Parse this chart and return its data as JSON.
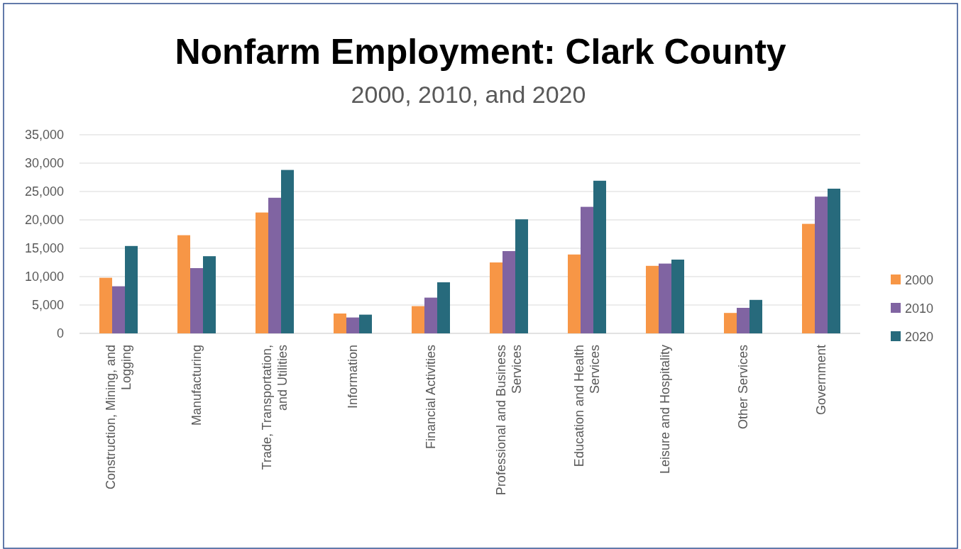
{
  "chart_data": {
    "type": "bar",
    "title": "Nonfarm Employment: Clark County",
    "subtitle": "2000, 2010, and 2020",
    "categories": [
      "Construction, Mining, and Logging",
      "Manufacturing",
      "Trade, Transportation, and Utilities",
      "Information",
      "Financial Activities",
      "Professional and Business Services",
      "Education and Health Services",
      "Leisure and Hospitality",
      "Other Services",
      "Government"
    ],
    "series": [
      {
        "name": "2000",
        "color": "#f79646",
        "values": [
          9800,
          17300,
          21300,
          3500,
          4800,
          12500,
          13900,
          11900,
          3600,
          19300
        ]
      },
      {
        "name": "2010",
        "color": "#8064a2",
        "values": [
          8300,
          11500,
          23900,
          2800,
          6300,
          14500,
          22300,
          12300,
          4500,
          24100
        ]
      },
      {
        "name": "2020",
        "color": "#276a7c",
        "values": [
          15400,
          13600,
          28800,
          3300,
          9000,
          20100,
          26900,
          13000,
          5900,
          25500
        ]
      }
    ],
    "ylim": [
      0,
      35000
    ],
    "yticks": [
      {
        "value": 0,
        "label": "0"
      },
      {
        "value": 5000,
        "label": "5,000"
      },
      {
        "value": 10000,
        "label": "10,000"
      },
      {
        "value": 15000,
        "label": "15,000"
      },
      {
        "value": 20000,
        "label": "20,000"
      },
      {
        "value": 25000,
        "label": "25,000"
      },
      {
        "value": 30000,
        "label": "30,000"
      },
      {
        "value": 35000,
        "label": "35,000"
      }
    ],
    "grid": "y",
    "legend": "right"
  }
}
